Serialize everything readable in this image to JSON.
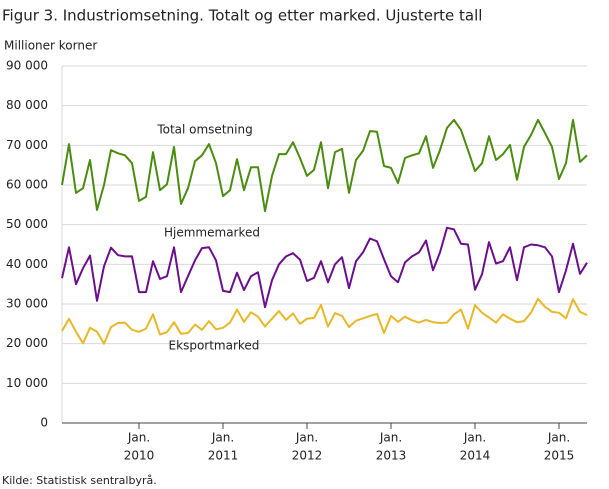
{
  "chart_data": {
    "type": "line",
    "title": "Figur 3. Industriomsetning. Totalt og etter marked. Ujusterte tall",
    "y_label": "Millioner  korner",
    "source": "Kilde: Statistisk sentralbyrå.",
    "x": [
      "2009-02",
      "2009-03",
      "2009-04",
      "2009-05",
      "2009-06",
      "2009-07",
      "2009-08",
      "2009-09",
      "2009-10",
      "2009-11",
      "2009-12",
      "2010-01",
      "2010-02",
      "2010-03",
      "2010-04",
      "2010-05",
      "2010-06",
      "2010-07",
      "2010-08",
      "2010-09",
      "2010-10",
      "2010-11",
      "2010-12",
      "2011-01",
      "2011-02",
      "2011-03",
      "2011-04",
      "2011-05",
      "2011-06",
      "2011-07",
      "2011-08",
      "2011-09",
      "2011-10",
      "2011-11",
      "2011-12",
      "2012-01",
      "2012-02",
      "2012-03",
      "2012-04",
      "2012-05",
      "2012-06",
      "2012-07",
      "2012-08",
      "2012-09",
      "2012-10",
      "2012-11",
      "2012-12",
      "2013-01",
      "2013-02",
      "2013-03",
      "2013-04",
      "2013-05",
      "2013-06",
      "2013-07",
      "2013-08",
      "2013-09",
      "2013-10",
      "2013-11",
      "2013-12",
      "2014-01",
      "2014-02",
      "2014-03",
      "2014-04",
      "2014-05",
      "2014-06",
      "2014-07",
      "2014-08",
      "2014-09",
      "2014-10",
      "2014-11",
      "2014-12",
      "2015-01",
      "2015-02",
      "2015-03",
      "2015-04",
      "2015-05"
    ],
    "xticks": [
      {
        "value": "2010-01",
        "label": [
          "Jan.",
          "2010"
        ]
      },
      {
        "value": "2011-01",
        "label": [
          "Jan.",
          "2011"
        ]
      },
      {
        "value": "2012-01",
        "label": [
          "Jan.",
          "2012"
        ]
      },
      {
        "value": "2013-01",
        "label": [
          "Jan.",
          "2013"
        ]
      },
      {
        "value": "2014-01",
        "label": [
          "Jan.",
          "2014"
        ]
      },
      {
        "value": "2015-01",
        "label": [
          "Jan.",
          "2015"
        ]
      }
    ],
    "ylim": [
      0,
      90000
    ],
    "yticks": [
      {
        "value": 0,
        "label": "0"
      },
      {
        "value": 10000,
        "label": "10 000"
      },
      {
        "value": 20000,
        "label": "20 000"
      },
      {
        "value": 30000,
        "label": "30 000"
      },
      {
        "value": 40000,
        "label": "40 000"
      },
      {
        "value": 50000,
        "label": "50 000"
      },
      {
        "value": 60000,
        "label": "60 000"
      },
      {
        "value": 70000,
        "label": "70 000"
      },
      {
        "value": 80000,
        "label": "80 000"
      },
      {
        "value": 90000,
        "label": "90 000"
      }
    ],
    "grid": true,
    "series": [
      {
        "name": "Total omsetning",
        "color": "#4a8c0f",
        "values": [
          60000,
          70300,
          58000,
          59200,
          66300,
          53700,
          60000,
          68800,
          68000,
          67500,
          65500,
          56000,
          57000,
          68300,
          58700,
          60200,
          69600,
          55200,
          59200,
          66000,
          67500,
          70300,
          65500,
          57200,
          58700,
          66500,
          58700,
          64500,
          64500,
          53400,
          62300,
          67800,
          67800,
          70800,
          66800,
          62300,
          63800,
          70800,
          59200,
          68300,
          69100,
          58000,
          66300,
          68600,
          73600,
          73400,
          64800,
          64300,
          60500,
          66800,
          67500,
          68000,
          72300,
          64300,
          68800,
          74400,
          76400,
          73900,
          68800,
          63500,
          65500,
          72300,
          66300,
          67800,
          70100,
          61300,
          69600,
          72600,
          76400,
          73100,
          69600,
          61500,
          65500,
          76400,
          65800,
          67500
        ]
      },
      {
        "name": "Hjemmemarked",
        "color": "#6b0f8c",
        "values": [
          36500,
          44300,
          35000,
          39000,
          42200,
          30800,
          39500,
          44200,
          42300,
          42000,
          42000,
          33000,
          33000,
          40800,
          36300,
          37000,
          44300,
          33000,
          37000,
          41000,
          44100,
          44300,
          41000,
          33300,
          33000,
          37900,
          33500,
          37000,
          38000,
          29200,
          36000,
          40000,
          42000,
          42800,
          41200,
          35800,
          36600,
          40800,
          35500,
          40000,
          41800,
          34000,
          40800,
          43000,
          46500,
          45800,
          41300,
          37000,
          35500,
          40500,
          42000,
          43000,
          46000,
          38500,
          43000,
          49200,
          48800,
          45200,
          45000,
          33600,
          37500,
          45600,
          40200,
          40800,
          44300,
          36000,
          44300,
          45000,
          44800,
          44300,
          42000,
          33000,
          38500,
          45200,
          37600,
          40400
        ]
      },
      {
        "name": "Eksportmarked",
        "color": "#e8b828",
        "values": [
          23200,
          26300,
          23000,
          20100,
          24000,
          23000,
          20000,
          24200,
          25200,
          25300,
          23500,
          23000,
          23800,
          27400,
          22300,
          22900,
          25400,
          22500,
          22700,
          24800,
          23500,
          25700,
          23600,
          24000,
          25300,
          28600,
          25500,
          27900,
          26800,
          24300,
          26300,
          28200,
          26000,
          27600,
          25000,
          26300,
          26500,
          29800,
          24300,
          27700,
          27000,
          24200,
          25800,
          26400,
          27000,
          27500,
          22700,
          27000,
          25500,
          26800,
          25900,
          25300,
          26000,
          25400,
          25200,
          25300,
          27400,
          28600,
          23800,
          29700,
          27800,
          26600,
          25300,
          27400,
          26300,
          25400,
          25700,
          27800,
          31300,
          29300,
          28000,
          27800,
          26400,
          31200,
          28000,
          27200
        ]
      }
    ]
  }
}
